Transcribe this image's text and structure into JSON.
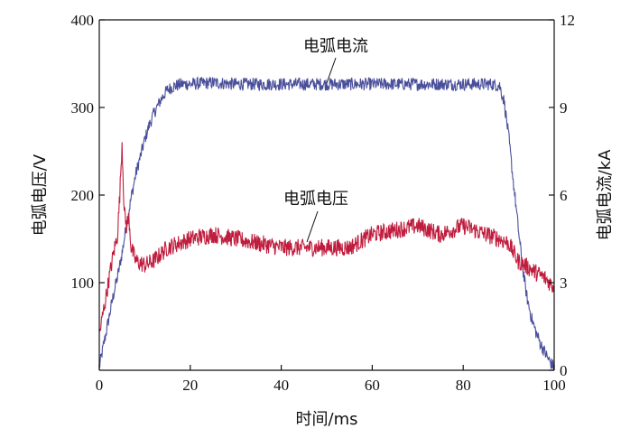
{
  "chart_data": {
    "type": "line",
    "xlabel": "时间/ms",
    "ylabel_left": "电弧电压/V",
    "ylabel_right": "电弧电流/kA",
    "xlim": [
      0,
      100
    ],
    "ylim_left": [
      0,
      400
    ],
    "ylim_right": [
      0,
      12
    ],
    "x_ticks": [
      "0",
      "20",
      "40",
      "60",
      "80",
      "100"
    ],
    "y_left_ticks": [
      "100",
      "200",
      "300",
      "400"
    ],
    "y_right_ticks": [
      "0",
      "3",
      "6",
      "9",
      "12"
    ],
    "grid": false,
    "annotations": [
      {
        "text": "电弧电流",
        "series": "current"
      },
      {
        "text": "电弧电压",
        "series": "voltage"
      }
    ],
    "series": [
      {
        "key": "current",
        "axis": "right",
        "color": "#4a4f9a",
        "x": [
          0,
          1,
          2,
          3,
          4,
          5,
          6,
          7,
          8,
          9,
          10,
          11,
          12,
          13,
          14,
          15,
          16,
          17,
          18,
          20,
          25,
          30,
          40,
          50,
          60,
          70,
          80,
          86,
          88,
          89,
          90,
          91,
          92,
          93,
          94,
          95,
          96,
          97,
          98,
          99,
          100
        ],
        "values": [
          0.1,
          0.9,
          1.7,
          2.5,
          3.2,
          4.0,
          5.0,
          5.9,
          6.7,
          7.3,
          7.9,
          8.4,
          8.8,
          9.1,
          9.4,
          9.6,
          9.7,
          9.75,
          9.8,
          9.8,
          9.85,
          9.8,
          9.8,
          9.8,
          9.8,
          9.8,
          9.8,
          9.8,
          9.75,
          9.2,
          8.0,
          6.5,
          5.0,
          3.6,
          2.5,
          1.8,
          1.3,
          0.9,
          0.6,
          0.3,
          0.1
        ]
      },
      {
        "key": "voltage",
        "axis": "left",
        "color": "#c01d3e",
        "x": [
          0,
          1,
          2,
          3,
          4,
          4.5,
          5,
          5.5,
          6,
          6.5,
          7,
          8,
          10,
          12,
          15,
          20,
          25,
          30,
          35,
          40,
          45,
          50,
          55,
          60,
          65,
          70,
          75,
          80,
          85,
          88,
          90,
          92,
          95,
          98,
          100
        ],
        "values": [
          40,
          70,
          100,
          130,
          155,
          200,
          260,
          180,
          165,
          175,
          140,
          125,
          120,
          125,
          140,
          150,
          155,
          150,
          145,
          140,
          140,
          140,
          140,
          155,
          160,
          165,
          155,
          165,
          155,
          150,
          145,
          125,
          115,
          105,
          95
        ]
      }
    ]
  }
}
